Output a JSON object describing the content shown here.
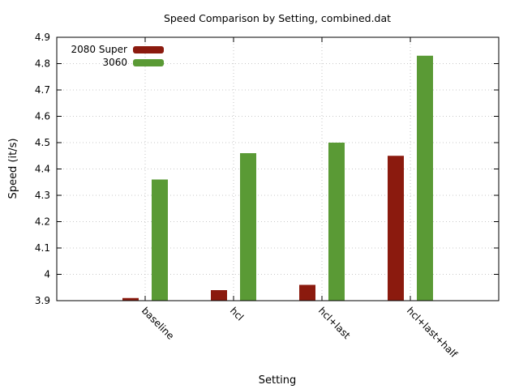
{
  "chart_data": {
    "type": "bar",
    "title": "Speed Comparison by Setting, combined.dat",
    "xlabel": "Setting",
    "ylabel": "Speed (it/s)",
    "ylim": [
      3.9,
      4.9
    ],
    "yticks": [
      "3.9",
      "4",
      "4.1",
      "4.2",
      "4.3",
      "4.4",
      "4.5",
      "4.6",
      "4.7",
      "4.8",
      "4.9"
    ],
    "categories": [
      "baseline",
      "hcl",
      "hcl+last",
      "hcl+last+half"
    ],
    "series": [
      {
        "name": "2080 Super",
        "color": "#8b1a0e",
        "values": [
          3.91,
          3.94,
          3.96,
          4.45
        ]
      },
      {
        "name": "3060",
        "color": "#5a9a35",
        "values": [
          4.36,
          4.46,
          4.5,
          4.83
        ]
      }
    ],
    "grid": true,
    "legend": "top-left"
  }
}
